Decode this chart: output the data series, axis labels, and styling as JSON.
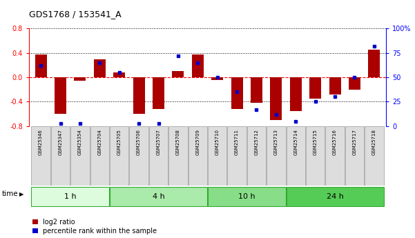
{
  "title": "GDS1768 / 153541_A",
  "samples": [
    "GSM25346",
    "GSM25347",
    "GSM25354",
    "GSM25704",
    "GSM25705",
    "GSM25706",
    "GSM25707",
    "GSM25708",
    "GSM25709",
    "GSM25710",
    "GSM25711",
    "GSM25712",
    "GSM25713",
    "GSM25714",
    "GSM25715",
    "GSM25716",
    "GSM25717",
    "GSM25718"
  ],
  "log2_ratio": [
    0.37,
    -0.6,
    -0.05,
    0.3,
    0.08,
    -0.6,
    -0.52,
    0.1,
    0.37,
    -0.04,
    -0.52,
    -0.42,
    -0.7,
    -0.55,
    -0.35,
    -0.28,
    -0.2,
    0.45
  ],
  "percentile": [
    62,
    3,
    3,
    65,
    55,
    3,
    3,
    72,
    65,
    50,
    35,
    17,
    12,
    5,
    25,
    30,
    50,
    82
  ],
  "groups": [
    {
      "label": "1 h",
      "start": 0,
      "end": 3,
      "color": "#ddfcdd"
    },
    {
      "label": "4 h",
      "start": 4,
      "end": 8,
      "color": "#aaeaaa"
    },
    {
      "label": "10 h",
      "start": 9,
      "end": 12,
      "color": "#88dd88"
    },
    {
      "label": "24 h",
      "start": 13,
      "end": 17,
      "color": "#55cc55"
    }
  ],
  "bar_color": "#aa0000",
  "dot_color": "#0000cc",
  "ylim_left": [
    -0.8,
    0.8
  ],
  "yticks_left": [
    -0.8,
    -0.4,
    0.0,
    0.4,
    0.8
  ],
  "yticks_right": [
    0,
    25,
    50,
    75,
    100
  ],
  "ytick_labels_right": [
    "0",
    "25",
    "50",
    "75",
    "100%"
  ],
  "background_color": "#ffffff",
  "legend_log2": "log2 ratio",
  "legend_pct": "percentile rank within the sample"
}
